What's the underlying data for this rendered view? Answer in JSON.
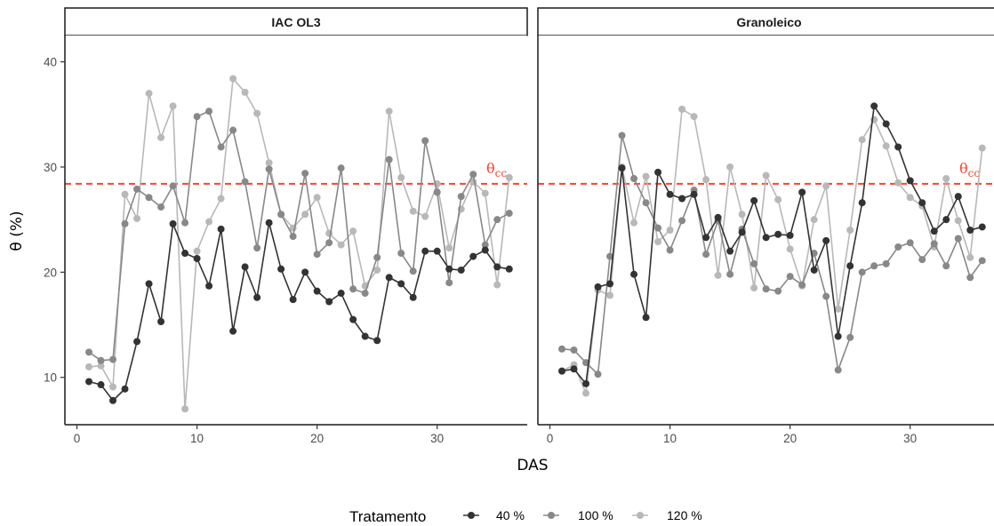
{
  "chart_data": {
    "type": "line",
    "xlabel": "DAS",
    "ylabel": "θ (%)",
    "x_ticks": [
      0,
      10,
      20,
      30
    ],
    "y_ticks": [
      10,
      20,
      30,
      40
    ],
    "xlim": [
      -1,
      37.5
    ],
    "ylim": [
      5.5,
      42.5
    ],
    "legend_title": "Tratamento",
    "legend_position": "bottom",
    "reference_line": {
      "value": 28.4,
      "label": "θ",
      "label_sub": "cc",
      "color": "#f8432e",
      "style": "dashed"
    },
    "series_colors": {
      "40 %": "#333333",
      "100 %": "#888888",
      "120 %": "#b8b8b8"
    },
    "series_names": [
      "40 %",
      "100 %",
      "120 %"
    ],
    "x": [
      1,
      2,
      3,
      4,
      5,
      6,
      7,
      8,
      9,
      10,
      11,
      12,
      13,
      14,
      15,
      16,
      17,
      18,
      19,
      20,
      21,
      22,
      23,
      24,
      25,
      26,
      27,
      28,
      29,
      30,
      31,
      32,
      33,
      34,
      35,
      36
    ],
    "panels": [
      {
        "title": "IAC OL3",
        "series": [
          {
            "name": "40 %",
            "values": [
              9.6,
              9.3,
              7.8,
              8.9,
              13.4,
              18.9,
              15.3,
              24.6,
              21.8,
              21.3,
              18.7,
              24.1,
              14.4,
              20.5,
              17.6,
              24.7,
              20.3,
              17.4,
              20.0,
              18.2,
              17.2,
              18.0,
              15.5,
              13.9,
              13.5,
              19.5,
              18.9,
              17.6,
              22.0,
              22.0,
              20.3,
              20.2,
              21.5,
              22.1,
              20.5,
              20.3
            ]
          },
          {
            "name": "100 %",
            "values": [
              12.4,
              11.6,
              11.7,
              24.6,
              27.9,
              27.1,
              26.2,
              28.2,
              24.7,
              34.8,
              35.3,
              31.9,
              33.5,
              28.6,
              22.3,
              29.8,
              25.5,
              23.4,
              29.4,
              21.7,
              22.8,
              29.9,
              18.4,
              18.0,
              21.4,
              30.7,
              21.8,
              20.1,
              32.5,
              27.6,
              19.0,
              27.2,
              29.3,
              22.6,
              25.0,
              25.6
            ]
          },
          {
            "name": "120 %",
            "values": [
              11.0,
              11.1,
              9.1,
              27.4,
              25.1,
              37.0,
              32.8,
              35.8,
              7.0,
              22.0,
              24.8,
              27.0,
              38.4,
              37.1,
              35.1,
              30.4,
              25.5,
              24.2,
              25.5,
              27.1,
              23.7,
              22.6,
              23.9,
              18.7,
              20.2,
              35.3,
              29.0,
              25.8,
              25.3,
              28.4,
              22.3,
              26.0,
              28.6,
              27.5,
              18.8,
              29.0
            ]
          }
        ]
      },
      {
        "title": "Granoleico",
        "series": [
          {
            "name": "40 %",
            "values": [
              10.6,
              10.8,
              9.4,
              18.6,
              18.9,
              29.9,
              19.8,
              15.7,
              29.5,
              27.4,
              27.0,
              27.4,
              23.3,
              25.2,
              22.0,
              23.8,
              26.8,
              23.3,
              23.6,
              23.5,
              27.6,
              20.2,
              23.0,
              13.9,
              20.6,
              26.6,
              35.8,
              34.1,
              31.9,
              28.7,
              26.6,
              23.9,
              25.0,
              27.2,
              24.0,
              24.3
            ]
          },
          {
            "name": "100 %",
            "values": [
              12.7,
              12.6,
              11.4,
              10.3,
              21.5,
              33.0,
              28.9,
              26.6,
              24.2,
              22.1,
              24.9,
              27.8,
              21.7,
              24.9,
              19.8,
              24.1,
              20.8,
              18.4,
              18.2,
              19.6,
              18.8,
              21.8,
              17.7,
              10.7,
              13.8,
              20.0,
              20.6,
              20.8,
              22.4,
              22.8,
              21.2,
              22.7,
              20.6,
              23.2,
              19.5,
              21.1
            ]
          },
          {
            "name": "120 %",
            "values": [
              10.6,
              11.2,
              8.5,
              18.3,
              17.8,
              30.0,
              24.7,
              29.1,
              22.9,
              24.0,
              35.5,
              34.8,
              28.8,
              19.7,
              30.0,
              25.5,
              18.5,
              29.2,
              26.9,
              22.2,
              18.7,
              25.0,
              28.2,
              16.5,
              24.0,
              32.6,
              34.5,
              32.0,
              28.5,
              27.1,
              26.3,
              22.4,
              28.9,
              24.9,
              21.4,
              31.8
            ]
          }
        ]
      }
    ]
  }
}
